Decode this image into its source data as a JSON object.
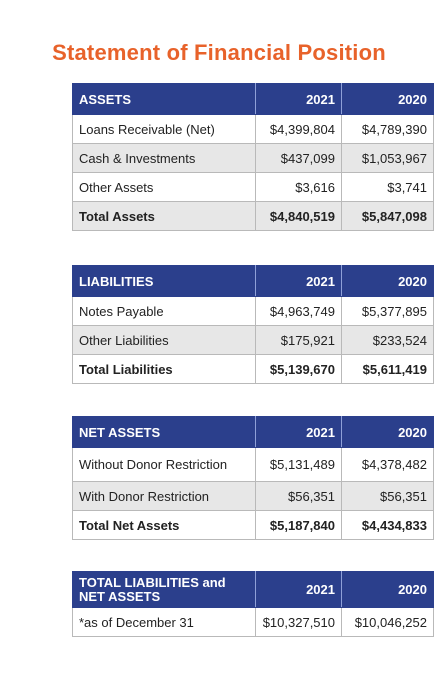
{
  "title": "Statement of Financial Position",
  "assets": {
    "header": "ASSETS",
    "col_2021": "2021",
    "col_2020": "2020",
    "rows": [
      {
        "label": "Loans Receivable (Net)",
        "v2021": "$4,399,804",
        "v2020": "$4,789,390"
      },
      {
        "label": "Cash & Investments",
        "v2021": "$437,099",
        "v2020": "$1,053,967"
      },
      {
        "label": "Other Assets",
        "v2021": "$3,616",
        "v2020": "$3,741"
      },
      {
        "label": "Total Assets",
        "v2021": "$4,840,519",
        "v2020": "$5,847,098"
      }
    ]
  },
  "liabilities": {
    "header": "LIABILITIES",
    "col_2021": "2021",
    "col_2020": "2020",
    "rows": [
      {
        "label": "Notes Payable",
        "v2021": "$4,963,749",
        "v2020": "$5,377,895"
      },
      {
        "label": "Other Liabilities",
        "v2021": "$175,921",
        "v2020": "$233,524"
      },
      {
        "label": "Total Liabilities",
        "v2021": "$5,139,670",
        "v2020": "$5,611,419"
      }
    ]
  },
  "net_assets": {
    "header": "NET ASSETS",
    "col_2021": "2021",
    "col_2020": "2020",
    "rows": [
      {
        "label": "Without Donor Restriction",
        "v2021": "$5,131,489",
        "v2020": "$4,378,482"
      },
      {
        "label": "With Donor Restriction",
        "v2021": "$56,351",
        "v2020": "$56,351"
      },
      {
        "label": "Total Net Assets",
        "v2021": "$5,187,840",
        "v2020": "$4,434,833"
      }
    ]
  },
  "total_liabilities_net_assets": {
    "header": "TOTAL LIABILITIES and NET ASSETS",
    "col_2021": "2021",
    "col_2020": "2020",
    "rows": [
      {
        "label": "*as of December 31",
        "v2021": "$10,327,510",
        "v2020": "$10,046,252"
      }
    ]
  },
  "colors": {
    "title": "#e8622a",
    "header_bg": "#2b3f8c",
    "shade": "#e7e7e7"
  }
}
